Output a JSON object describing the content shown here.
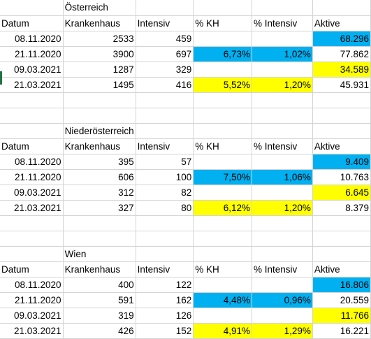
{
  "colors": {
    "highlight_blue": "#00b0f0",
    "highlight_yellow": "#ffff00",
    "gridline": "#d4d4d4"
  },
  "sections": [
    {
      "title": "Österreich",
      "headers": [
        "Datum",
        "Krankenhaus",
        "Intensiv",
        "% KH",
        "% Intensiv",
        "Aktive"
      ],
      "rows": [
        [
          "08.11.2020",
          "2533",
          "459",
          "",
          "",
          "68.296"
        ],
        [
          "21.11.2020",
          "3900",
          "697",
          "6,73%",
          "1,02%",
          "77.862"
        ],
        [
          "09.03.2021",
          "1287",
          "329",
          "",
          "",
          "34.589"
        ],
        [
          "21.03.2021",
          "1495",
          "416",
          "5,52%",
          "1,20%",
          "45.931"
        ]
      ]
    },
    {
      "title": "Niederösterreich",
      "headers": [
        "Datum",
        "Krankenhaus",
        "Intensiv",
        "% KH",
        "% Intensiv",
        "Aktive"
      ],
      "rows": [
        [
          "08.11.2020",
          "395",
          "57",
          "",
          "",
          "9.409"
        ],
        [
          "21.11.2020",
          "606",
          "100",
          "7,50%",
          "1,06%",
          "10.763"
        ],
        [
          "09.03.2021",
          "312",
          "82",
          "",
          "",
          "6.645"
        ],
        [
          "21.03.2021",
          "327",
          "80",
          "6,12%",
          "1,20%",
          "8.379"
        ]
      ]
    },
    {
      "title": "Wien",
      "headers": [
        "Datum",
        "Krankenhaus",
        "Intensiv",
        "% KH",
        "% Intensiv",
        "Aktive"
      ],
      "rows": [
        [
          "08.11.2020",
          "400",
          "122",
          "",
          "",
          "16.806"
        ],
        [
          "21.11.2020",
          "591",
          "162",
          "4,48%",
          "0,96%",
          "20.559"
        ],
        [
          "09.03.2021",
          "319",
          "126",
          "",
          "",
          "11.766"
        ],
        [
          "21.03.2021",
          "426",
          "152",
          "4,91%",
          "1,29%",
          "16.221"
        ]
      ]
    }
  ]
}
